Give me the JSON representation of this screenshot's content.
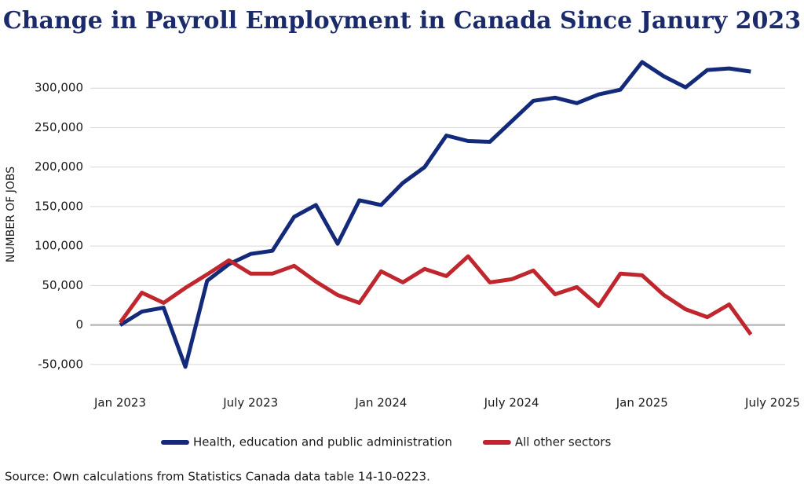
{
  "chart_data": {
    "type": "line",
    "title": "Change in Payroll Employment in Canada Since Janury 2023",
    "y_label": "NUMBER OF JOBS",
    "source": "Source: Own calculations from Statistics Canada data table 14-10-0223.",
    "categories": [
      "Jan 2023",
      null,
      null,
      null,
      null,
      null,
      "July 2023",
      null,
      null,
      null,
      null,
      null,
      "Jan 2024",
      null,
      null,
      null,
      null,
      null,
      "July 2024",
      null,
      null,
      null,
      null,
      null,
      "Jan 2025",
      null,
      null,
      null,
      null,
      null,
      "July 2025"
    ],
    "series": [
      {
        "name": "Health, education and public administration",
        "color": "#13297a",
        "values": [
          0,
          17000,
          22000,
          -53000,
          56000,
          77000,
          90000,
          94000,
          137000,
          152000,
          103000,
          158000,
          152000,
          180000,
          200000,
          240000,
          233000,
          232000,
          258000,
          284000,
          288000,
          281000,
          292000,
          298000,
          333000,
          315000,
          301000,
          323000,
          325000,
          321000,
          null
        ]
      },
      {
        "name": "All other sectors",
        "color": "#c0262d",
        "values": [
          3000,
          41000,
          28000,
          47000,
          64000,
          82000,
          65000,
          65000,
          75000,
          55000,
          38000,
          28000,
          68000,
          54000,
          71000,
          62000,
          87000,
          54000,
          58000,
          69000,
          39000,
          48000,
          24000,
          65000,
          63000,
          38000,
          20000,
          10000,
          26000,
          -12000,
          null
        ]
      }
    ],
    "ylim": [
      -70000,
      340000
    ],
    "yticks": [
      {
        "value": -50000,
        "label": "-50,000"
      },
      0,
      {
        "value": 50000,
        "label": "50,000"
      },
      {
        "value": 100000,
        "label": "100,000"
      },
      {
        "value": 150000,
        "label": "150,000"
      },
      {
        "value": 200000,
        "label": "200,000"
      },
      {
        "value": 250000,
        "label": "250,000"
      },
      {
        "value": 300000,
        "label": "300,000"
      }
    ],
    "grid": true
  }
}
